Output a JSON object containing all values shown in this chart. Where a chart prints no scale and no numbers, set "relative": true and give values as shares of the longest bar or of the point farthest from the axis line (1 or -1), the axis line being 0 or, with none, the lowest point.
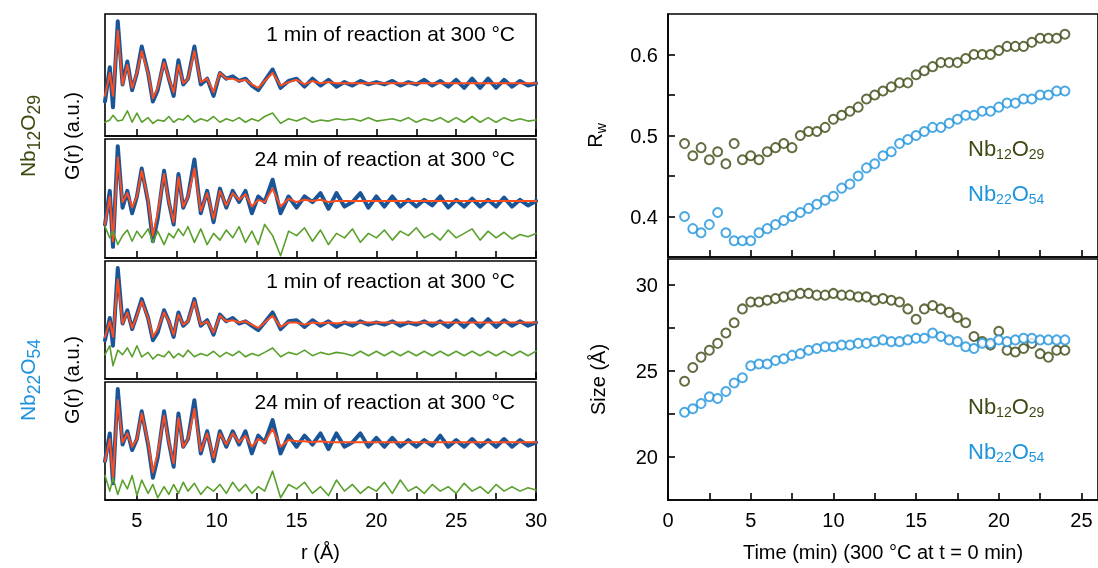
{
  "chart_data": [
    {
      "type": "line",
      "relative": true,
      "title": "1 min of reaction at 300 °C",
      "ylabel": "G(r) (a.u.)",
      "annotations": [
        "Nb$_{12}$O$_{29}$"
      ],
      "xlim": [
        3,
        30
      ],
      "xticks": [
        5,
        {
          "value": 7.5,
          "label": null
        },
        10,
        {
          "value": 12.5,
          "label": null
        },
        15,
        {
          "value": 17.5,
          "label": null
        },
        20,
        {
          "value": 22.5,
          "label": null
        },
        25,
        {
          "value": 27.5,
          "label": null
        },
        30
      ],
      "tick_labels": false,
      "marker": "none",
      "line_style": "solid",
      "grid": false,
      "legend": false,
      "x": [
        3.0,
        3.3,
        3.5,
        3.8,
        4.1,
        4.4,
        4.7,
        5.0,
        5.3,
        5.7,
        6.0,
        6.3,
        6.7,
        7.0,
        7.3,
        7.6,
        7.9,
        8.2,
        8.6,
        9.0,
        9.4,
        9.8,
        10.2,
        10.6,
        11.0,
        11.4,
        11.8,
        12.2,
        12.6,
        13.0,
        13.5,
        14.0,
        14.5,
        15.0,
        15.5,
        16.0,
        16.5,
        17.0,
        17.5,
        18.0,
        18.5,
        19.0,
        19.5,
        20.0,
        20.5,
        21.0,
        21.5,
        22.0,
        22.5,
        23.0,
        23.5,
        24.0,
        24.5,
        25.0,
        25.5,
        26.0,
        26.5,
        27.0,
        27.5,
        28.0,
        28.5,
        29.0,
        29.5,
        30.0
      ],
      "series": [
        {
          "color": "#1a5598",
          "values": [
            0.3,
            0.6,
            0.25,
            1.0,
            0.45,
            0.65,
            0.4,
            0.55,
            0.78,
            0.55,
            0.3,
            0.4,
            0.66,
            0.5,
            0.35,
            0.66,
            0.45,
            0.5,
            0.78,
            0.45,
            0.5,
            0.35,
            0.55,
            0.5,
            0.52,
            0.48,
            0.5,
            0.44,
            0.4,
            0.48,
            0.58,
            0.42,
            0.48,
            0.5,
            0.43,
            0.5,
            0.44,
            0.49,
            0.43,
            0.47,
            0.44,
            0.48,
            0.45,
            0.47,
            0.45,
            0.48,
            0.44,
            0.47,
            0.45,
            0.49,
            0.44,
            0.48,
            0.43,
            0.49,
            0.42,
            0.5,
            0.42,
            0.5,
            0.42,
            0.49,
            0.43,
            0.48,
            0.44,
            0.46
          ]
        },
        {
          "color": "#ff4c1c",
          "values": [
            0.35,
            0.55,
            0.35,
            0.92,
            0.45,
            0.62,
            0.42,
            0.55,
            0.74,
            0.55,
            0.33,
            0.42,
            0.64,
            0.5,
            0.38,
            0.62,
            0.46,
            0.5,
            0.74,
            0.47,
            0.5,
            0.38,
            0.55,
            0.5,
            0.5,
            0.48,
            0.49,
            0.45,
            0.42,
            0.48,
            0.55,
            0.44,
            0.47,
            0.49,
            0.45,
            0.48,
            0.46,
            0.47,
            0.46,
            0.46,
            0.46,
            0.46,
            0.46,
            0.46,
            0.46,
            0.46,
            0.46,
            0.46,
            0.46,
            0.46,
            0.46,
            0.46,
            0.46,
            0.46,
            0.46,
            0.46,
            0.46,
            0.46,
            0.46,
            0.46,
            0.46,
            0.46,
            0.46,
            0.46
          ]
        },
        {
          "color": "#5aa02c",
          "values": [
            0.12,
            0.14,
            0.18,
            0.13,
            0.14,
            0.22,
            0.12,
            0.2,
            0.12,
            0.16,
            0.11,
            0.14,
            0.13,
            0.17,
            0.12,
            0.15,
            0.14,
            0.18,
            0.12,
            0.15,
            0.13,
            0.17,
            0.12,
            0.15,
            0.13,
            0.16,
            0.12,
            0.15,
            0.13,
            0.17,
            0.2,
            0.11,
            0.15,
            0.13,
            0.16,
            0.12,
            0.14,
            0.13,
            0.15,
            0.14,
            0.15,
            0.13,
            0.16,
            0.13,
            0.14,
            0.15,
            0.13,
            0.16,
            0.12,
            0.15,
            0.13,
            0.16,
            0.12,
            0.16,
            0.12,
            0.17,
            0.12,
            0.16,
            0.12,
            0.16,
            0.13,
            0.15,
            0.13,
            0.14
          ]
        }
      ]
    },
    {
      "type": "line",
      "relative": true,
      "title": "24 min of reaction at 300 °C",
      "xlim": [
        3,
        30
      ],
      "xticks": [
        5,
        {
          "value": 7.5,
          "label": null
        },
        10,
        {
          "value": 12.5,
          "label": null
        },
        15,
        {
          "value": 17.5,
          "label": null
        },
        20,
        {
          "value": 22.5,
          "label": null
        },
        25,
        {
          "value": 27.5,
          "label": null
        },
        30
      ],
      "tick_labels": false,
      "marker": "none",
      "line_style": "solid",
      "grid": false,
      "legend": false,
      "x": [
        3.0,
        3.3,
        3.5,
        3.8,
        4.1,
        4.4,
        4.7,
        5.0,
        5.3,
        5.7,
        6.0,
        6.3,
        6.7,
        7.0,
        7.3,
        7.6,
        7.9,
        8.2,
        8.6,
        9.0,
        9.4,
        9.8,
        10.2,
        10.6,
        11.0,
        11.4,
        11.8,
        12.2,
        12.6,
        13.0,
        13.5,
        14.0,
        14.5,
        15.0,
        15.5,
        16.0,
        16.5,
        17.0,
        17.5,
        18.0,
        18.5,
        19.0,
        19.5,
        20.0,
        20.5,
        21.0,
        21.5,
        22.0,
        22.5,
        23.0,
        23.5,
        24.0,
        24.5,
        25.0,
        25.5,
        26.0,
        26.5,
        27.0,
        27.5,
        28.0,
        28.5,
        29.0,
        29.5,
        30.0
      ],
      "series": [
        {
          "color": "#1a5598",
          "values": [
            0.3,
            0.6,
            0.1,
            1.0,
            0.45,
            0.6,
            0.4,
            0.55,
            0.8,
            0.5,
            0.15,
            0.35,
            0.78,
            0.5,
            0.3,
            0.75,
            0.45,
            0.55,
            0.88,
            0.4,
            0.6,
            0.32,
            0.62,
            0.45,
            0.6,
            0.5,
            0.6,
            0.4,
            0.55,
            0.5,
            0.7,
            0.4,
            0.55,
            0.45,
            0.55,
            0.5,
            0.58,
            0.44,
            0.58,
            0.46,
            0.5,
            0.58,
            0.45,
            0.55,
            0.46,
            0.55,
            0.46,
            0.52,
            0.46,
            0.52,
            0.47,
            0.55,
            0.45,
            0.52,
            0.46,
            0.53,
            0.46,
            0.52,
            0.46,
            0.54,
            0.46,
            0.52,
            0.47,
            0.51
          ]
        },
        {
          "color": "#ff4c1c",
          "values": [
            0.3,
            0.55,
            0.15,
            0.9,
            0.5,
            0.58,
            0.45,
            0.55,
            0.78,
            0.52,
            0.2,
            0.4,
            0.75,
            0.5,
            0.32,
            0.72,
            0.46,
            0.55,
            0.8,
            0.42,
            0.58,
            0.35,
            0.6,
            0.47,
            0.58,
            0.52,
            0.57,
            0.46,
            0.52,
            0.5,
            0.62,
            0.46,
            0.53,
            0.5,
            0.52,
            0.51,
            0.52,
            0.5,
            0.51,
            0.51,
            0.51,
            0.51,
            0.51,
            0.51,
            0.51,
            0.51,
            0.51,
            0.51,
            0.51,
            0.51,
            0.51,
            0.51,
            0.51,
            0.51,
            0.51,
            0.51,
            0.51,
            0.51,
            0.51,
            0.51,
            0.51,
            0.51,
            0.51,
            0.51
          ]
        },
        {
          "color": "#5aa02c",
          "values": [
            0.28,
            0.18,
            0.24,
            0.12,
            0.2,
            0.25,
            0.15,
            0.24,
            0.18,
            0.26,
            0.14,
            0.24,
            0.12,
            0.22,
            0.18,
            0.26,
            0.2,
            0.28,
            0.14,
            0.26,
            0.12,
            0.22,
            0.16,
            0.25,
            0.18,
            0.28,
            0.14,
            0.24,
            0.12,
            0.3,
            0.2,
            0.02,
            0.24,
            0.2,
            0.27,
            0.15,
            0.25,
            0.12,
            0.22,
            0.18,
            0.26,
            0.14,
            0.22,
            0.18,
            0.25,
            0.16,
            0.24,
            0.2,
            0.27,
            0.18,
            0.22,
            0.16,
            0.25,
            0.18,
            0.22,
            0.26,
            0.16,
            0.24,
            0.18,
            0.23,
            0.17,
            0.21,
            0.19,
            0.22
          ]
        }
      ]
    },
    {
      "type": "line",
      "relative": true,
      "title": "1 min of reaction at 300 °C",
      "ylabel": "G(r) (a.u.)",
      "annotations": [
        "Nb$_{22}$O$_{54}$"
      ],
      "xlim": [
        3,
        30
      ],
      "xticks": [
        5,
        {
          "value": 7.5,
          "label": null
        },
        10,
        {
          "value": 12.5,
          "label": null
        },
        15,
        {
          "value": 17.5,
          "label": null
        },
        20,
        {
          "value": 22.5,
          "label": null
        },
        25,
        {
          "value": 27.5,
          "label": null
        },
        30
      ],
      "tick_labels": false,
      "marker": "none",
      "line_style": "solid",
      "grid": false,
      "legend": false,
      "x": [
        3.0,
        3.3,
        3.5,
        3.8,
        4.1,
        4.4,
        4.7,
        5.0,
        5.3,
        5.7,
        6.0,
        6.3,
        6.7,
        7.0,
        7.3,
        7.6,
        7.9,
        8.2,
        8.6,
        9.0,
        9.4,
        9.8,
        10.2,
        10.6,
        11.0,
        11.4,
        11.8,
        12.2,
        12.6,
        13.0,
        13.5,
        14.0,
        14.5,
        15.0,
        15.5,
        16.0,
        16.5,
        17.0,
        17.5,
        18.0,
        18.5,
        19.0,
        19.5,
        20.0,
        20.5,
        21.0,
        21.5,
        22.0,
        22.5,
        23.0,
        23.5,
        24.0,
        24.5,
        25.0,
        25.5,
        26.0,
        26.5,
        27.0,
        27.5,
        28.0,
        28.5,
        29.0,
        29.5,
        30.0
      ],
      "series": [
        {
          "color": "#1a5598",
          "values": [
            0.35,
            0.55,
            0.3,
            1.0,
            0.5,
            0.62,
            0.45,
            0.58,
            0.72,
            0.55,
            0.35,
            0.42,
            0.62,
            0.52,
            0.38,
            0.6,
            0.48,
            0.52,
            0.72,
            0.48,
            0.53,
            0.4,
            0.58,
            0.52,
            0.55,
            0.5,
            0.52,
            0.48,
            0.44,
            0.51,
            0.6,
            0.45,
            0.52,
            0.53,
            0.47,
            0.53,
            0.48,
            0.52,
            0.47,
            0.51,
            0.48,
            0.52,
            0.49,
            0.51,
            0.49,
            0.52,
            0.48,
            0.51,
            0.49,
            0.52,
            0.48,
            0.52,
            0.47,
            0.53,
            0.47,
            0.54,
            0.47,
            0.54,
            0.47,
            0.53,
            0.48,
            0.52,
            0.48,
            0.51
          ]
        },
        {
          "color": "#ff4c1c",
          "values": [
            0.38,
            0.52,
            0.38,
            0.9,
            0.5,
            0.6,
            0.46,
            0.57,
            0.7,
            0.55,
            0.38,
            0.45,
            0.6,
            0.52,
            0.4,
            0.58,
            0.49,
            0.52,
            0.7,
            0.49,
            0.52,
            0.42,
            0.57,
            0.52,
            0.53,
            0.51,
            0.52,
            0.49,
            0.46,
            0.51,
            0.57,
            0.47,
            0.51,
            0.51,
            0.49,
            0.51,
            0.5,
            0.51,
            0.5,
            0.51,
            0.51,
            0.51,
            0.51,
            0.51,
            0.51,
            0.51,
            0.51,
            0.51,
            0.51,
            0.51,
            0.51,
            0.51,
            0.51,
            0.51,
            0.51,
            0.51,
            0.51,
            0.51,
            0.51,
            0.51,
            0.51,
            0.51,
            0.51,
            0.51
          ]
        },
        {
          "color": "#5aa02c",
          "values": [
            0.22,
            0.3,
            0.12,
            0.26,
            0.22,
            0.28,
            0.2,
            0.3,
            0.2,
            0.24,
            0.18,
            0.22,
            0.2,
            0.25,
            0.19,
            0.23,
            0.2,
            0.26,
            0.2,
            0.23,
            0.21,
            0.25,
            0.2,
            0.24,
            0.21,
            0.25,
            0.2,
            0.23,
            0.21,
            0.24,
            0.28,
            0.2,
            0.24,
            0.22,
            0.26,
            0.21,
            0.24,
            0.22,
            0.24,
            0.23,
            0.21,
            0.25,
            0.21,
            0.25,
            0.21,
            0.25,
            0.21,
            0.25,
            0.21,
            0.25,
            0.21,
            0.25,
            0.21,
            0.25,
            0.21,
            0.25,
            0.21,
            0.25,
            0.21,
            0.25,
            0.21,
            0.25,
            0.21,
            0.25
          ]
        }
      ]
    },
    {
      "type": "line",
      "relative": true,
      "title": "24 min of reaction at 300 °C",
      "xlabel": "r (Å)",
      "xlim": [
        3,
        30
      ],
      "xticks": [
        5,
        {
          "value": 7.5,
          "label": null
        },
        10,
        {
          "value": 12.5,
          "label": null
        },
        15,
        {
          "value": 17.5,
          "label": null
        },
        20,
        {
          "value": 22.5,
          "label": null
        },
        25,
        {
          "value": 27.5,
          "label": null
        },
        30
      ],
      "tick_labels": "x",
      "marker": "none",
      "line_style": "solid",
      "grid": false,
      "legend": false,
      "x": [
        3.0,
        3.3,
        3.5,
        3.8,
        4.1,
        4.4,
        4.7,
        5.0,
        5.3,
        5.7,
        6.0,
        6.3,
        6.7,
        7.0,
        7.3,
        7.6,
        7.9,
        8.2,
        8.6,
        9.0,
        9.4,
        9.8,
        10.2,
        10.6,
        11.0,
        11.4,
        11.8,
        12.2,
        12.6,
        13.0,
        13.5,
        14.0,
        14.5,
        15.0,
        15.5,
        16.0,
        16.5,
        17.0,
        17.5,
        18.0,
        18.5,
        19.0,
        19.5,
        20.0,
        20.5,
        21.0,
        21.5,
        22.0,
        22.5,
        23.0,
        23.5,
        24.0,
        24.5,
        25.0,
        25.5,
        26.0,
        26.5,
        27.0,
        27.5,
        28.0,
        28.5,
        29.0,
        29.5,
        30.0
      ],
      "series": [
        {
          "color": "#1a5598",
          "values": [
            0.35,
            0.6,
            0.15,
            1.0,
            0.5,
            0.62,
            0.45,
            0.55,
            0.8,
            0.5,
            0.2,
            0.38,
            0.8,
            0.52,
            0.3,
            0.78,
            0.48,
            0.55,
            0.9,
            0.42,
            0.62,
            0.35,
            0.62,
            0.48,
            0.62,
            0.5,
            0.62,
            0.42,
            0.58,
            0.52,
            0.72,
            0.42,
            0.58,
            0.48,
            0.58,
            0.5,
            0.6,
            0.46,
            0.6,
            0.48,
            0.52,
            0.6,
            0.48,
            0.56,
            0.48,
            0.56,
            0.48,
            0.54,
            0.48,
            0.54,
            0.49,
            0.58,
            0.48,
            0.54,
            0.48,
            0.55,
            0.48,
            0.54,
            0.48,
            0.55,
            0.48,
            0.54,
            0.49,
            0.52
          ]
        },
        {
          "color": "#ff4c1c",
          "values": [
            0.35,
            0.55,
            0.2,
            0.9,
            0.52,
            0.6,
            0.48,
            0.55,
            0.78,
            0.52,
            0.25,
            0.42,
            0.76,
            0.52,
            0.33,
            0.74,
            0.48,
            0.55,
            0.82,
            0.44,
            0.6,
            0.38,
            0.6,
            0.5,
            0.6,
            0.52,
            0.58,
            0.48,
            0.55,
            0.52,
            0.64,
            0.48,
            0.54,
            0.53,
            0.53,
            0.52,
            0.53,
            0.52,
            0.52,
            0.52,
            0.52,
            0.52,
            0.52,
            0.52,
            0.52,
            0.52,
            0.52,
            0.52,
            0.52,
            0.52,
            0.52,
            0.52,
            0.52,
            0.52,
            0.52,
            0.52,
            0.52,
            0.52,
            0.52,
            0.52,
            0.52,
            0.52,
            0.52,
            0.52
          ]
        },
        {
          "color": "#5aa02c",
          "values": [
            0.22,
            0.08,
            0.2,
            0.05,
            0.18,
            0.1,
            0.22,
            0.04,
            0.18,
            0.06,
            0.14,
            0.02,
            0.12,
            0.05,
            0.14,
            0.06,
            0.16,
            0.08,
            0.15,
            0.05,
            0.12,
            0.08,
            0.14,
            0.06,
            0.16,
            0.08,
            0.14,
            0.06,
            0.12,
            0.08,
            0.26,
            0.02,
            0.14,
            0.1,
            0.16,
            0.06,
            0.12,
            0.04,
            0.18,
            0.08,
            0.14,
            0.06,
            0.12,
            0.08,
            0.16,
            0.06,
            0.18,
            0.08,
            0.12,
            0.06,
            0.14,
            0.08,
            0.12,
            0.06,
            0.15,
            0.08,
            0.12,
            0.06,
            0.14,
            0.08,
            0.12,
            0.08,
            0.11,
            0.09
          ]
        }
      ]
    },
    {
      "type": "scatter",
      "ylabel": "R$_{w}$",
      "xlim": [
        0,
        26
      ],
      "xticks": [
        0,
        {
          "value": 2.5,
          "label": null
        },
        5,
        {
          "value": 7.5,
          "label": null
        },
        10,
        {
          "value": 12.5,
          "label": null
        },
        15,
        {
          "value": 17.5,
          "label": null
        },
        20,
        {
          "value": 22.5,
          "label": null
        },
        25
      ],
      "ylim": [
        0.35,
        0.65
      ],
      "yticks": [
        0.4,
        {
          "value": 0.45,
          "label": null
        },
        0.5,
        {
          "value": 0.55,
          "label": null
        },
        0.6
      ],
      "tick_labels": "y",
      "marker": "circle",
      "grid": false,
      "legend": false,
      "x": [
        1,
        1.5,
        2,
        2.5,
        3,
        3.5,
        4,
        4.5,
        5,
        5.5,
        6,
        6.5,
        7,
        7.5,
        8,
        8.5,
        9,
        9.5,
        10,
        10.5,
        11,
        11.5,
        12,
        12.5,
        13,
        13.5,
        14,
        14.5,
        15,
        15.5,
        16,
        16.5,
        17,
        17.5,
        18,
        18.5,
        19,
        19.5,
        20,
        20.5,
        21,
        21.5,
        22,
        22.5,
        23,
        23.5,
        24
      ],
      "series": [
        {
          "name": "Nb$_{12}$O$_{29}$",
          "color": "#3b4a12",
          "values": [
            0.49,
            0.475,
            0.485,
            0.47,
            0.48,
            0.465,
            0.49,
            0.47,
            0.475,
            0.47,
            0.48,
            0.485,
            0.49,
            0.485,
            0.5,
            0.505,
            0.505,
            0.51,
            0.52,
            0.525,
            0.53,
            0.535,
            0.545,
            0.55,
            0.555,
            0.56,
            0.565,
            0.565,
            0.575,
            0.58,
            0.585,
            0.59,
            0.59,
            0.59,
            0.595,
            0.6,
            0.6,
            0.6,
            0.605,
            0.61,
            0.61,
            0.61,
            0.615,
            0.62,
            0.62,
            0.62,
            0.625
          ]
        },
        {
          "name": "Nb$_{22}$O$_{54}$",
          "color": "#1f94dd",
          "values": [
            0.4,
            0.385,
            0.38,
            0.39,
            0.405,
            0.38,
            0.37,
            0.37,
            0.37,
            0.38,
            0.385,
            0.39,
            0.395,
            0.4,
            0.405,
            0.41,
            0.415,
            0.42,
            0.425,
            0.435,
            0.44,
            0.45,
            0.46,
            0.465,
            0.475,
            0.48,
            0.49,
            0.495,
            0.5,
            0.505,
            0.51,
            0.51,
            0.515,
            0.52,
            0.525,
            0.525,
            0.53,
            0.53,
            0.535,
            0.54,
            0.54,
            0.545,
            0.545,
            0.55,
            0.55,
            0.555,
            0.555
          ]
        }
      ]
    },
    {
      "type": "scatter",
      "ylabel": "Size (Å)",
      "xlabel": "Time (min) (300 °C at t = 0 min)",
      "xlim": [
        0,
        26
      ],
      "xticks": [
        0,
        {
          "value": 2.5,
          "label": null
        },
        5,
        {
          "value": 7.5,
          "label": null
        },
        10,
        {
          "value": 12.5,
          "label": null
        },
        15,
        {
          "value": 17.5,
          "label": null
        },
        20,
        {
          "value": 22.5,
          "label": null
        },
        25
      ],
      "ylim": [
        17.5,
        31.5
      ],
      "yticks": [
        20,
        {
          "value": 22.5,
          "label": null
        },
        25,
        {
          "value": 27.5,
          "label": null
        },
        30
      ],
      "marker": "circle",
      "grid": false,
      "legend": false,
      "x": [
        1,
        1.5,
        2,
        2.5,
        3,
        3.5,
        4,
        4.5,
        5,
        5.5,
        6,
        6.5,
        7,
        7.5,
        8,
        8.5,
        9,
        9.5,
        10,
        10.5,
        11,
        11.5,
        12,
        12.5,
        13,
        13.5,
        14,
        14.5,
        15,
        15.5,
        16,
        16.5,
        17,
        17.5,
        18,
        18.5,
        19,
        19.5,
        20,
        20.5,
        21,
        21.5,
        22,
        22.5,
        23,
        23.5,
        24
      ],
      "series": [
        {
          "name": "Nb$_{12}$O$_{29}$",
          "color": "#3b4a12",
          "values": [
            24.4,
            25.2,
            25.8,
            26.2,
            26.6,
            27.2,
            27.8,
            28.6,
            29.0,
            29.0,
            29.1,
            29.2,
            29.3,
            29.4,
            29.5,
            29.5,
            29.4,
            29.4,
            29.5,
            29.4,
            29.4,
            29.3,
            29.3,
            29.1,
            29.2,
            29.1,
            29.0,
            28.6,
            28.0,
            28.6,
            28.8,
            28.6,
            28.4,
            28.1,
            27.8,
            27.0,
            26.7,
            26.5,
            27.3,
            26.2,
            26.1,
            26.3,
            26.6,
            26.0,
            25.8,
            26.2,
            26.2
          ]
        },
        {
          "name": "Nb$_{22}$O$_{54}$",
          "color": "#1f94dd",
          "values": [
            22.6,
            22.8,
            23.1,
            23.5,
            23.4,
            23.8,
            24.3,
            24.6,
            25.3,
            25.4,
            25.4,
            25.6,
            25.7,
            25.9,
            26.0,
            26.2,
            26.3,
            26.4,
            26.4,
            26.5,
            26.5,
            26.6,
            26.6,
            26.7,
            26.8,
            26.7,
            26.7,
            26.8,
            26.9,
            26.9,
            27.2,
            27.0,
            26.8,
            26.7,
            26.4,
            26.3,
            26.6,
            26.6,
            26.8,
            26.7,
            26.8,
            26.9,
            26.9,
            26.8,
            26.8,
            26.8,
            26.8
          ]
        }
      ]
    }
  ]
}
